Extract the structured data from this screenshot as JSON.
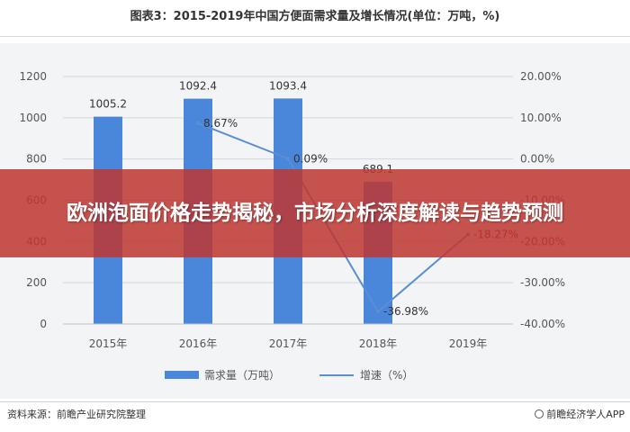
{
  "title": "图表3：2015-2019年中国方便面需求量及增长情况(单位：万吨，%)",
  "banner": {
    "text": "欧洲泡面价格走势揭秘，市场分析深度解读与趋势预测"
  },
  "footer": {
    "source": "资料来源：前瞻产业研究院整理",
    "brand": "前瞻经济学人APP"
  },
  "colors": {
    "bar": "#4a86d9",
    "line": "#5b8fd4",
    "grid": "#d4d6d9",
    "plot_bg": "#f3f4f6"
  },
  "chart_data": {
    "type": "bar",
    "categories": [
      "2015年",
      "2016年",
      "2017年",
      "2018年",
      "2019年"
    ],
    "series": [
      {
        "name": "需求量（万吨）",
        "type": "bar",
        "axis": "left",
        "values": [
          1005.2,
          1092.4,
          1093.4,
          689.1,
          null
        ],
        "labels": [
          "1005.2",
          "1092.4",
          "1093.4",
          "689.1",
          ""
        ]
      },
      {
        "name": "增速（%）",
        "type": "line",
        "axis": "right",
        "values": [
          null,
          8.67,
          0.09,
          -36.98,
          -18.27
        ],
        "labels": [
          "",
          "8.67%",
          "0.09%",
          "-36.98%",
          "-18.27%"
        ]
      }
    ],
    "y_left": {
      "min": 0,
      "max": 1200,
      "ticks": [
        "0",
        "200",
        "400",
        "600",
        "800",
        "1000",
        "1200"
      ]
    },
    "y_right": {
      "min": -40,
      "max": 20,
      "ticks": [
        "-40.00%",
        "-30.00%",
        "-20.00%",
        "-10.00%",
        "0.00%",
        "10.00%",
        "20.00%"
      ]
    },
    "grid": true,
    "legend_position": "bottom"
  }
}
